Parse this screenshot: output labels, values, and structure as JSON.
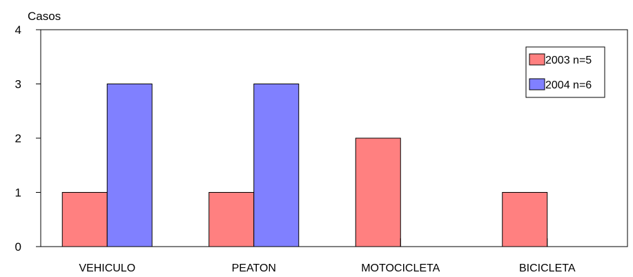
{
  "chart_data": {
    "type": "bar",
    "title": "",
    "xlabel": "",
    "ylabel": "Casos",
    "ylim": [
      0,
      4
    ],
    "yticks": [
      0,
      1,
      2,
      3,
      4
    ],
    "categories": [
      "VEHICULO",
      "PEATON",
      "MOTOCICLETA",
      "BICICLETA"
    ],
    "series": [
      {
        "name": "2003 n=5",
        "color": "#ff8080",
        "values": [
          1,
          1,
          2,
          1
        ]
      },
      {
        "name": "2004 n=6",
        "color": "#8080ff",
        "values": [
          3,
          3,
          0,
          0
        ]
      }
    ],
    "grid": false,
    "legend_position": "top-right"
  }
}
